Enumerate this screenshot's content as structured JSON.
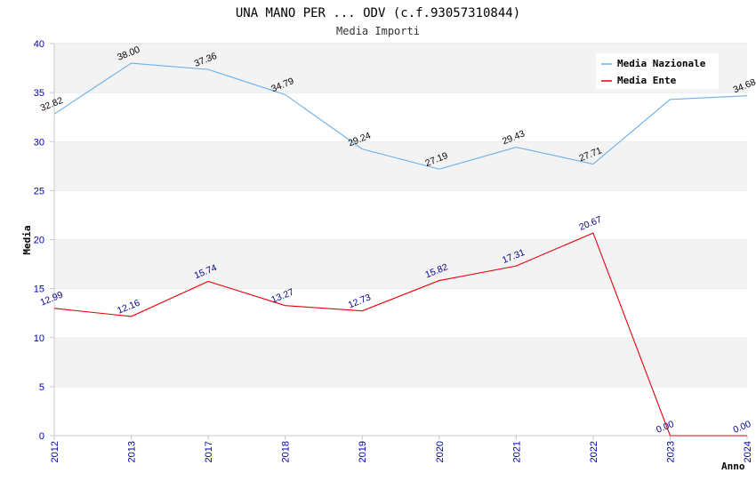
{
  "chart_data": {
    "type": "line",
    "title": "UNA MANO PER ... ODV (c.f.93057310844)",
    "subtitle": "Media Importi",
    "xlabel": "Anno",
    "ylabel": "Media",
    "categories": [
      "2012",
      "2013",
      "2017",
      "2018",
      "2019",
      "2020",
      "2021",
      "2022",
      "2023",
      "2024"
    ],
    "ylim": [
      0,
      40
    ],
    "yticks": [
      0,
      5,
      10,
      15,
      20,
      25,
      30,
      35,
      40
    ],
    "grid": "horizontal-bands",
    "legend_position": "top-right",
    "series": [
      {
        "name": "Media Nazionale",
        "color": "#6aaee8",
        "label_color": "#000000",
        "values": [
          32.82,
          38.0,
          37.36,
          34.79,
          29.24,
          27.19,
          29.43,
          27.71,
          34.3,
          34.68
        ],
        "labels": [
          "32.82",
          "38.00",
          "37.36",
          "34.79",
          "29.24",
          "27.19",
          "29.43",
          "27.71",
          "",
          "34.68"
        ]
      },
      {
        "name": "Media Ente",
        "color": "#e8000b",
        "label_color": "#00008b",
        "values": [
          12.99,
          12.16,
          15.74,
          13.27,
          12.73,
          15.82,
          17.31,
          20.67,
          0.0,
          0.0
        ],
        "labels": [
          "12.99",
          "12.16",
          "15.74",
          "13.27",
          "12.73",
          "15.82",
          "17.31",
          "20.67",
          "0.00",
          "0.00"
        ]
      }
    ]
  }
}
